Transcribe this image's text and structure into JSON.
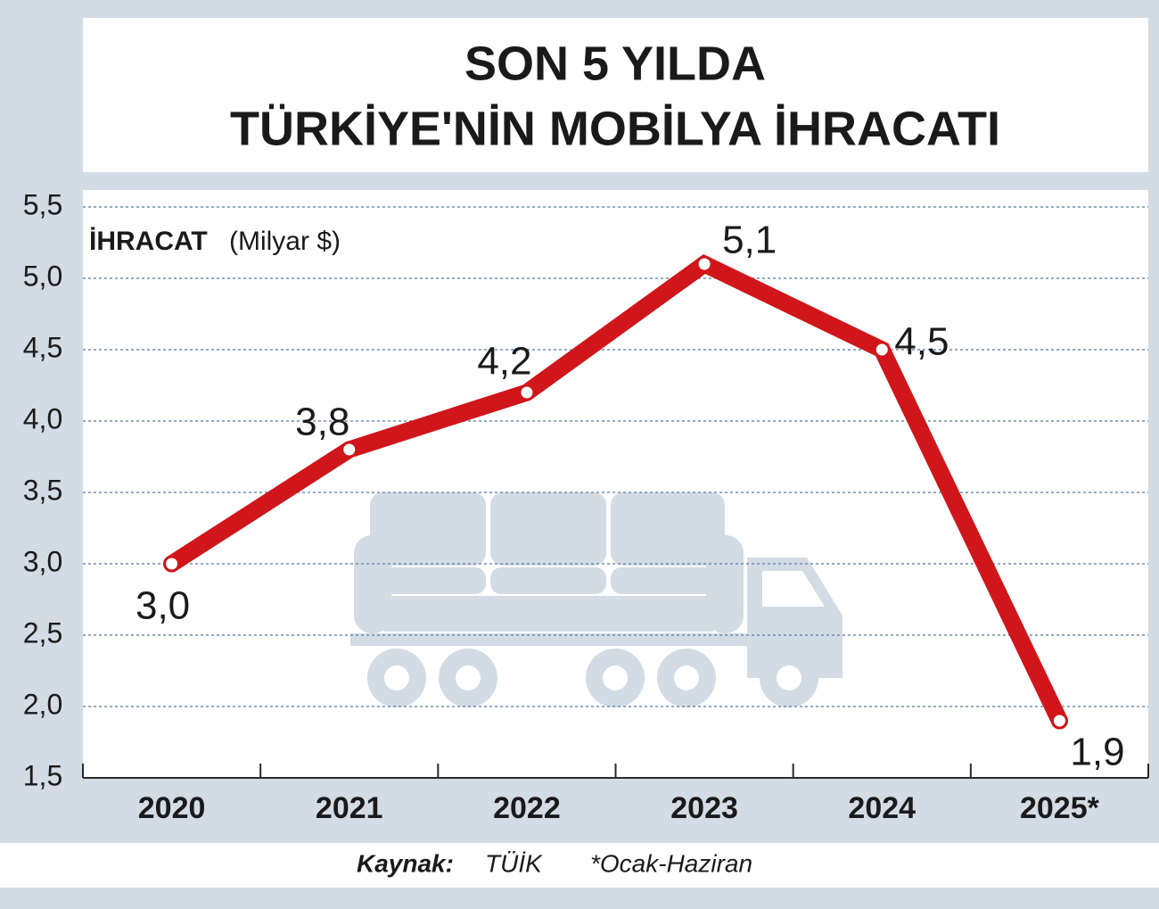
{
  "chart_data": {
    "type": "line",
    "title": [
      "SON 5 YILDA",
      "TÜRKİYE'NİN MOBİLYA İHRACATI"
    ],
    "y_label": "İHRACAT",
    "y_unit": "(Milyar $)",
    "categories": [
      "2020",
      "2021",
      "2022",
      "2023",
      "2024",
      "2025*"
    ],
    "series": [
      {
        "name": "İhracat",
        "color": "#d0161b",
        "values": [
          3.0,
          3.8,
          4.2,
          5.1,
          4.5,
          1.9
        ],
        "value_labels": [
          "3,0",
          "3,8",
          "4,2",
          "5,1",
          "4,5",
          "1,9"
        ]
      }
    ],
    "ylim": [
      1.5,
      5.5
    ],
    "yticks": [
      {
        "value": 1.5,
        "label": "1,5"
      },
      {
        "value": 2.0,
        "label": "2,0"
      },
      {
        "value": 2.5,
        "label": "2,5"
      },
      {
        "value": 3.0,
        "label": "3,0"
      },
      {
        "value": 3.5,
        "label": "3,5"
      },
      {
        "value": 4.0,
        "label": "4,0"
      },
      {
        "value": 4.5,
        "label": "4,5"
      },
      {
        "value": 5.0,
        "label": "5,0"
      },
      {
        "value": 5.5,
        "label": "5,5"
      }
    ],
    "grid": true,
    "source_label": "Kaynak:",
    "source": "TÜİK",
    "note": "*Ocak-Haziran"
  }
}
